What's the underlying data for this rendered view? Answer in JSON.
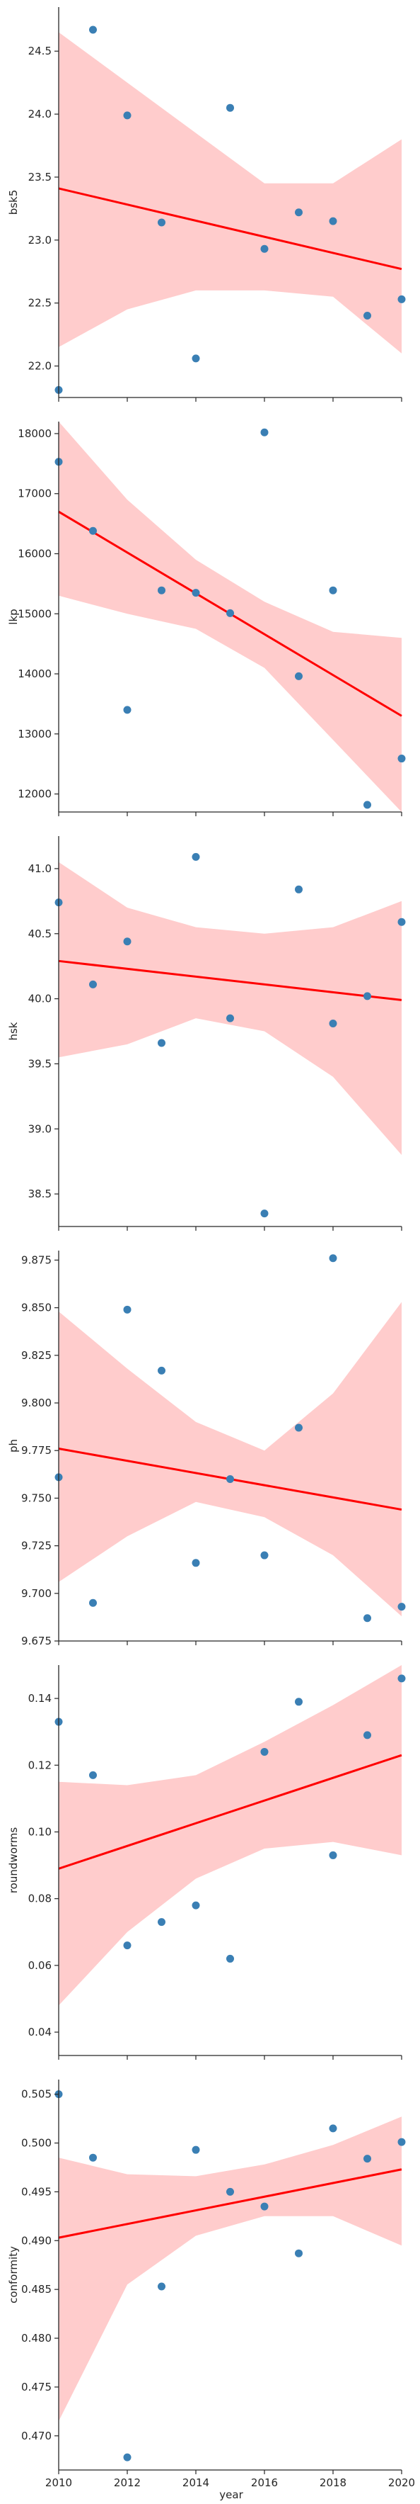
{
  "figure": {
    "xlabel": "year",
    "scatter_color": "#3a7fb4",
    "line_color": "#ff0000",
    "band_color": "#ffcccc"
  },
  "chart_data": [
    {
      "type": "scatter",
      "ylabel": "bsk5",
      "xlim": [
        2010,
        2020
      ],
      "ylim": [
        21.75,
        24.85
      ],
      "yticks": [
        "22.0",
        "22.5",
        "23.0",
        "23.5",
        "24.0",
        "24.5"
      ],
      "xticks": [
        "2010",
        "2012",
        "2014",
        "2016",
        "2018",
        "2020"
      ],
      "series": [
        {
          "x": [
            2010,
            2011,
            2012,
            2013,
            2014,
            2015,
            2016,
            2017,
            2018,
            2019,
            2020
          ],
          "y": [
            21.81,
            24.67,
            23.99,
            23.14,
            22.06,
            24.05,
            22.93,
            23.22,
            23.15,
            22.4,
            22.53
          ]
        }
      ],
      "regression": {
        "y_start": 23.41,
        "y_end": 22.77
      },
      "band": {
        "x": [
          2010,
          2012,
          2014,
          2016,
          2018,
          2020
        ],
        "upper": [
          24.65,
          24.25,
          23.85,
          23.45,
          23.45,
          23.8
        ],
        "lower": [
          22.15,
          22.45,
          22.6,
          22.6,
          22.55,
          22.1
        ]
      }
    },
    {
      "type": "scatter",
      "ylabel": "lkp",
      "xlim": [
        2010,
        2020
      ],
      "ylim": [
        11700,
        18200
      ],
      "yticks": [
        "12000",
        "13000",
        "14000",
        "15000",
        "16000",
        "17000",
        "18000"
      ],
      "xticks": [
        "2010",
        "2012",
        "2014",
        "2016",
        "2018",
        "2020"
      ],
      "series": [
        {
          "x": [
            2010,
            2011,
            2012,
            2013,
            2014,
            2015,
            2016,
            2017,
            2018,
            2019,
            2020
          ],
          "y": [
            17530,
            16380,
            13400,
            15390,
            15350,
            15010,
            18020,
            13960,
            15390,
            11820,
            12590
          ]
        }
      ],
      "regression": {
        "y_start": 16700,
        "y_end": 13300
      },
      "band": {
        "x": [
          2010,
          2012,
          2014,
          2016,
          2018,
          2020
        ],
        "upper": [
          18200,
          16900,
          15900,
          15200,
          14700,
          14600
        ],
        "lower": [
          15300,
          15000,
          14750,
          14100,
          12900,
          11700
        ]
      }
    },
    {
      "type": "scatter",
      "ylabel": "hsk",
      "xlim": [
        2010,
        2020
      ],
      "ylim": [
        38.25,
        41.25
      ],
      "yticks": [
        "38.5",
        "39.0",
        "39.5",
        "40.0",
        "40.5",
        "41.0"
      ],
      "xticks": [
        "2010",
        "2012",
        "2014",
        "2016",
        "2018",
        "2020"
      ],
      "series": [
        {
          "x": [
            2010,
            2011,
            2012,
            2013,
            2014,
            2015,
            2016,
            2017,
            2018,
            2019,
            2020
          ],
          "y": [
            40.74,
            40.11,
            40.44,
            39.66,
            41.09,
            39.85,
            38.35,
            40.84,
            39.81,
            40.02,
            40.59
          ]
        }
      ],
      "regression": {
        "y_start": 40.29,
        "y_end": 39.99
      },
      "band": {
        "x": [
          2010,
          2012,
          2014,
          2016,
          2018,
          2020
        ],
        "upper": [
          41.05,
          40.7,
          40.55,
          40.5,
          40.55,
          40.75
        ],
        "lower": [
          39.55,
          39.65,
          39.85,
          39.75,
          39.4,
          38.8
        ]
      }
    },
    {
      "type": "scatter",
      "ylabel": "ph",
      "xlim": [
        2010,
        2020
      ],
      "ylim": [
        9.675,
        9.88
      ],
      "yticks": [
        "9.675",
        "9.700",
        "9.725",
        "9.750",
        "9.775",
        "9.800",
        "9.825",
        "9.850",
        "9.875"
      ],
      "xticks": [
        "2010",
        "2012",
        "2014",
        "2016",
        "2018",
        "2020"
      ],
      "series": [
        {
          "x": [
            2010,
            2011,
            2012,
            2013,
            2014,
            2015,
            2016,
            2017,
            2018,
            2019,
            2020
          ],
          "y": [
            9.761,
            9.695,
            9.849,
            9.817,
            9.716,
            9.76,
            9.72,
            9.787,
            9.876,
            9.687,
            9.693
          ]
        }
      ],
      "regression": {
        "y_start": 9.776,
        "y_end": 9.744
      },
      "band": {
        "x": [
          2010,
          2012,
          2014,
          2016,
          2018,
          2020
        ],
        "upper": [
          9.848,
          9.818,
          9.79,
          9.775,
          9.805,
          9.853
        ],
        "lower": [
          9.706,
          9.73,
          9.748,
          9.74,
          9.72,
          9.688
        ]
      }
    },
    {
      "type": "scatter",
      "ylabel": "roundworms",
      "xlim": [
        2010,
        2020
      ],
      "ylim": [
        0.033,
        0.15
      ],
      "yticks": [
        "0.04",
        "0.06",
        "0.08",
        "0.10",
        "0.12",
        "0.14"
      ],
      "xticks": [
        "2010",
        "2012",
        "2014",
        "2016",
        "2018",
        "2020"
      ],
      "series": [
        {
          "x": [
            2010,
            2011,
            2012,
            2013,
            2014,
            2015,
            2016,
            2017,
            2018,
            2019,
            2020
          ],
          "y": [
            0.133,
            0.117,
            0.066,
            0.073,
            0.078,
            0.062,
            0.124,
            0.139,
            0.093,
            0.129,
            0.146
          ]
        }
      ],
      "regression": {
        "y_start": 0.089,
        "y_end": 0.123
      },
      "band": {
        "x": [
          2010,
          2012,
          2014,
          2016,
          2018,
          2020
        ],
        "upper": [
          0.115,
          0.114,
          0.117,
          0.127,
          0.138,
          0.15
        ],
        "lower": [
          0.048,
          0.07,
          0.086,
          0.095,
          0.097,
          0.093
        ]
      }
    },
    {
      "type": "scatter",
      "ylabel": "conformity",
      "xlim": [
        2010,
        2020
      ],
      "ylim": [
        0.4665,
        0.5065
      ],
      "yticks": [
        "0.470",
        "0.475",
        "0.480",
        "0.485",
        "0.490",
        "0.495",
        "0.500",
        "0.505"
      ],
      "xticks": [
        "2010",
        "2012",
        "2014",
        "2016",
        "2018",
        "2020"
      ],
      "series": [
        {
          "x": [
            2010,
            2011,
            2012,
            2013,
            2014,
            2015,
            2016,
            2017,
            2018,
            2019,
            2020
          ],
          "y": [
            0.505,
            0.4985,
            0.4678,
            0.4853,
            0.4993,
            0.495,
            0.4935,
            0.4887,
            0.5015,
            0.4984,
            0.5001
          ]
        }
      ],
      "regression": {
        "y_start": 0.4903,
        "y_end": 0.4973
      },
      "band": {
        "x": [
          2010,
          2012,
          2014,
          2016,
          2018,
          2020
        ],
        "upper": [
          0.4985,
          0.4968,
          0.4966,
          0.4978,
          0.4998,
          0.5027
        ],
        "lower": [
          0.4715,
          0.4855,
          0.4905,
          0.4925,
          0.4925,
          0.4895
        ]
      }
    }
  ]
}
